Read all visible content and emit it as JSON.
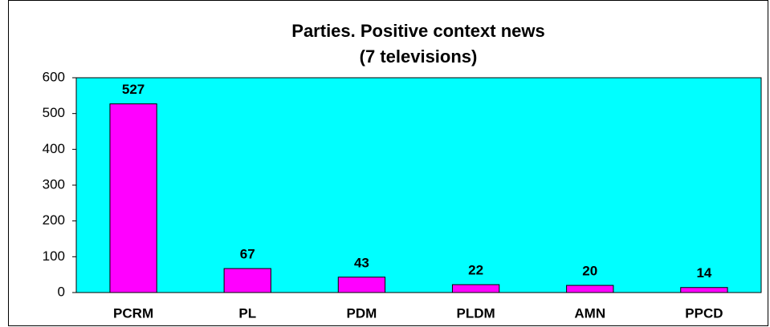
{
  "chart_data": {
    "type": "bar",
    "title": "Parties. Positive context news",
    "subtitle": "(7 televisions)",
    "categories": [
      "PCRM",
      "PL",
      "PDM",
      "PLDM",
      "AMN",
      "PPCD"
    ],
    "values": [
      527,
      67,
      43,
      22,
      20,
      14
    ],
    "color": "#ff00ff",
    "plot_background": "#00ffff",
    "ylim": [
      0,
      600
    ],
    "yticks": [
      0,
      100,
      200,
      300,
      400,
      500,
      600
    ],
    "grid": false
  }
}
